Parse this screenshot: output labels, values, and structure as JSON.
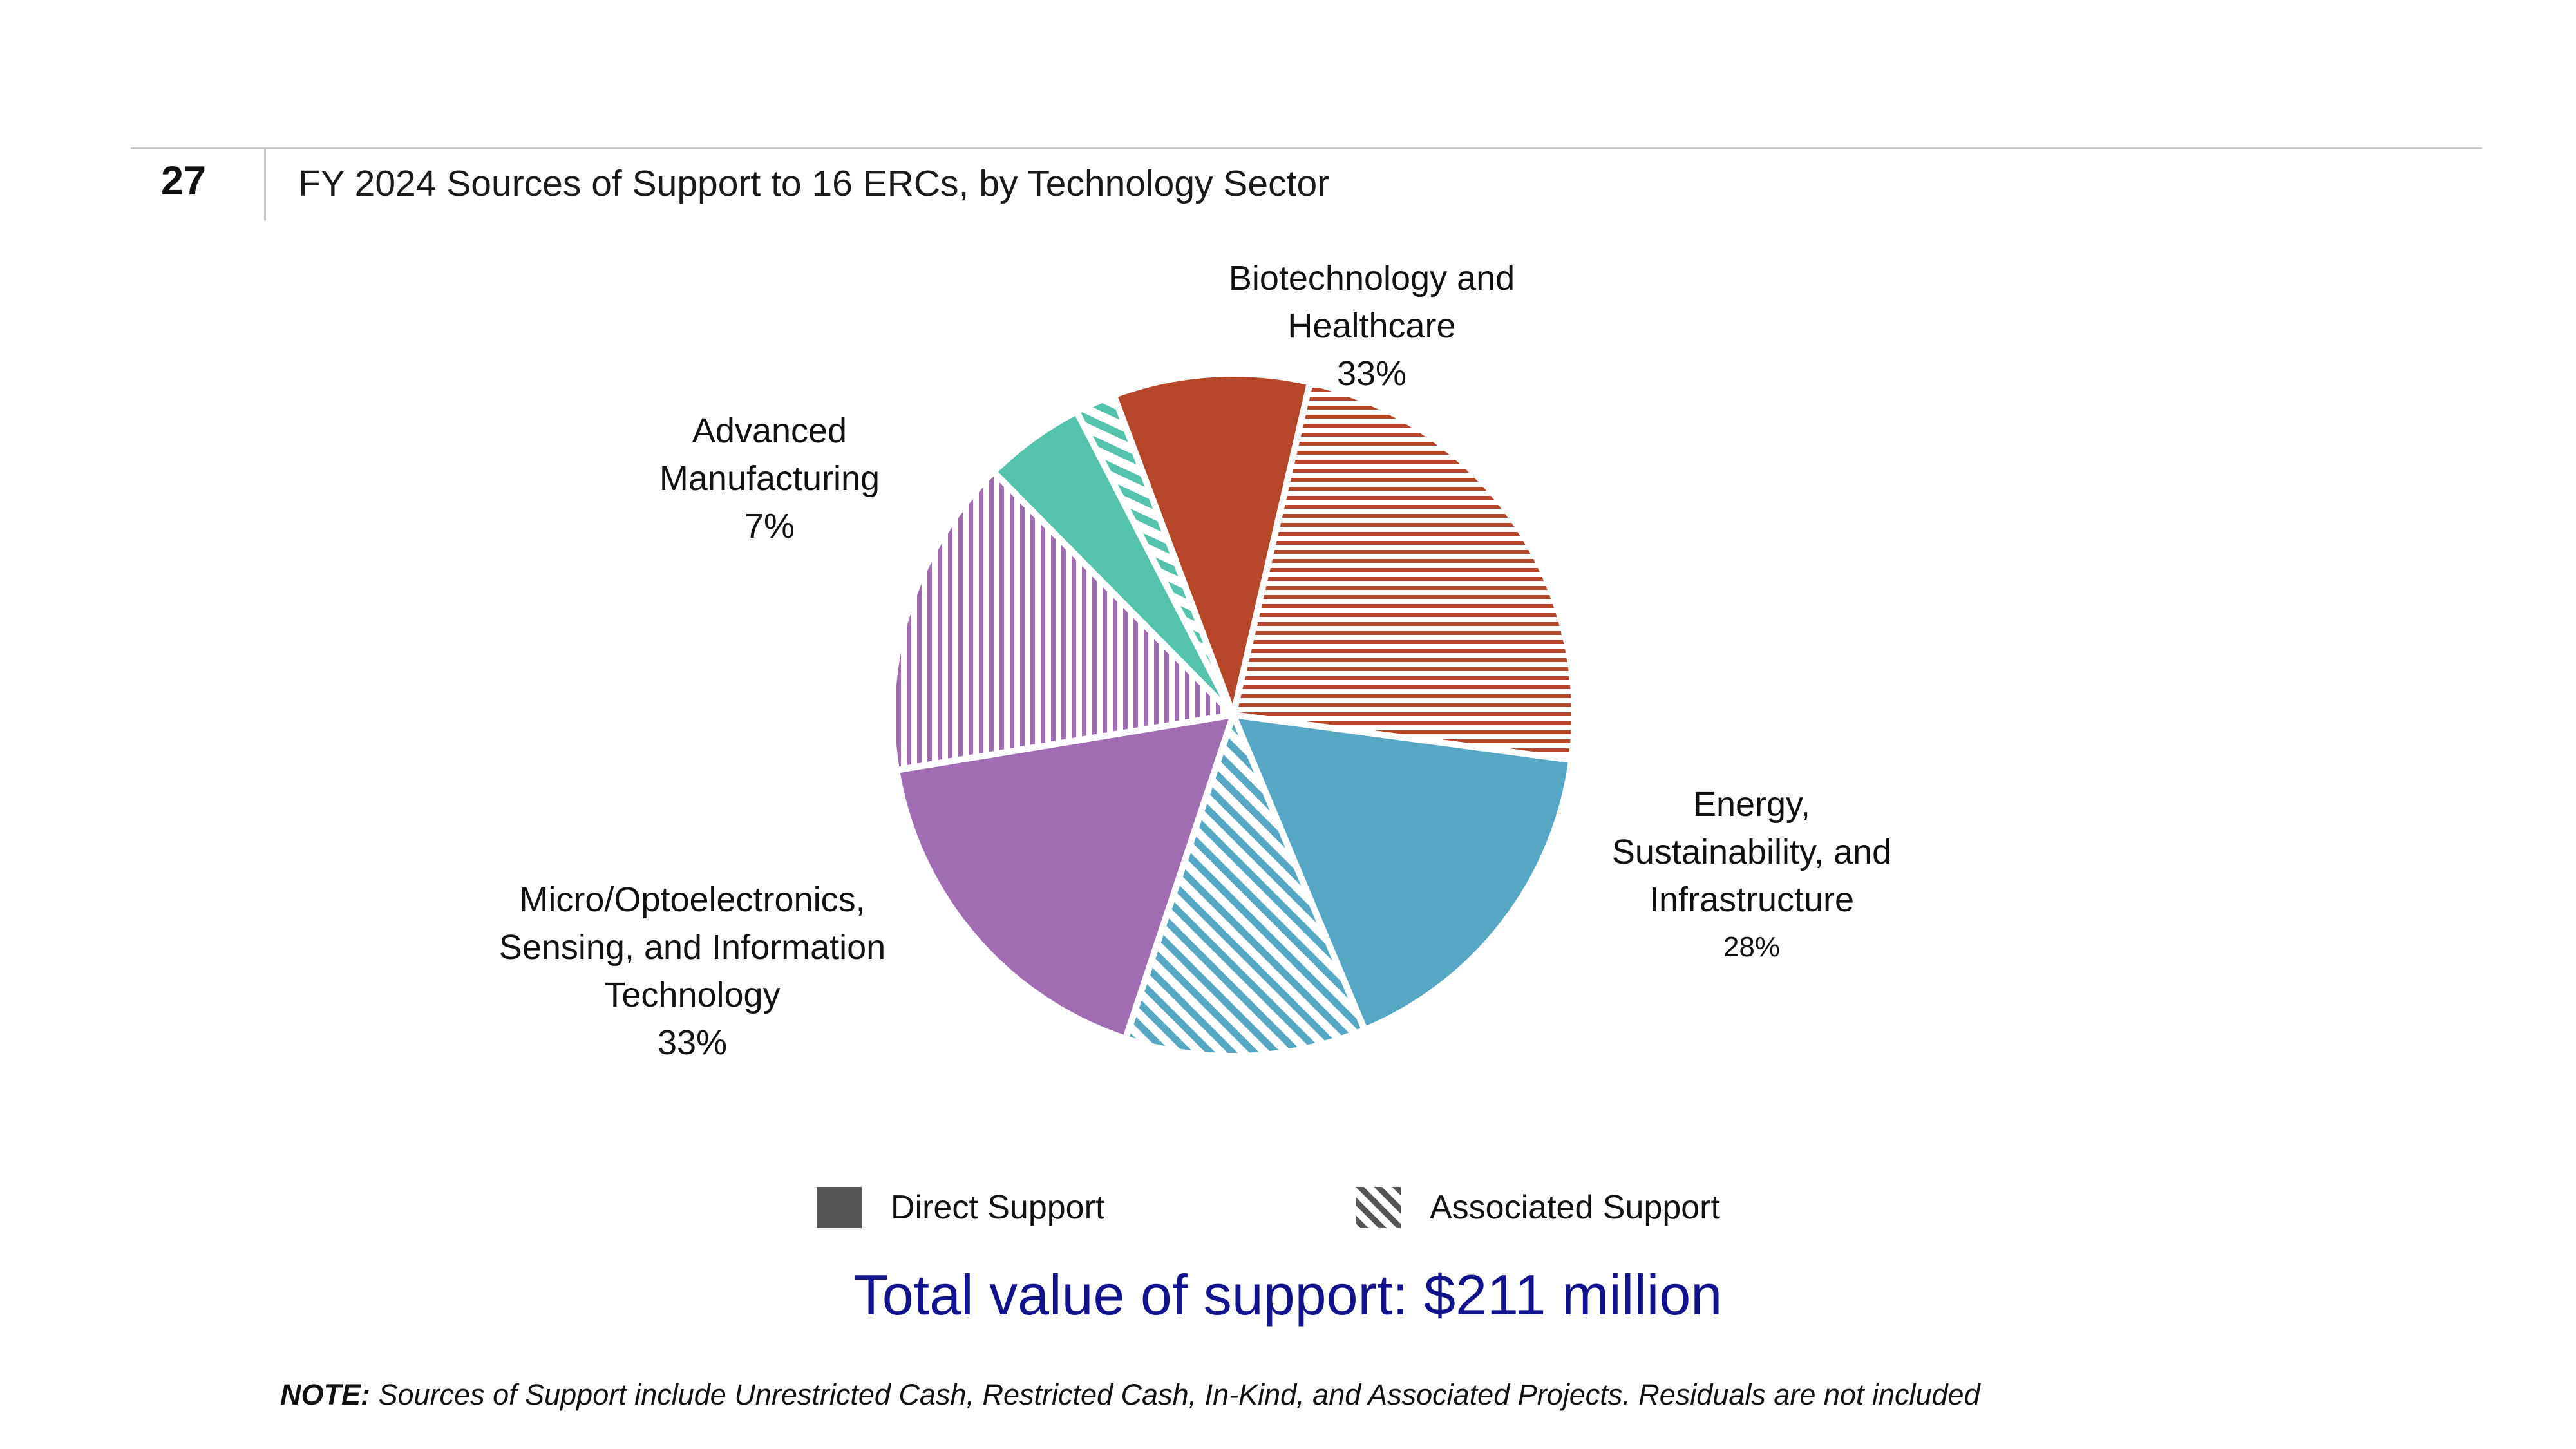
{
  "slide": {
    "number": "27",
    "title": "FY 2024 Sources of Support to 16 ERCs, by Technology Sector"
  },
  "chart_data": {
    "type": "pie",
    "title": "FY 2024 Sources of Support to 16 ERCs, by Technology Sector",
    "start_angle_deg": 13,
    "direction": "clockwise",
    "slices": [
      {
        "sector": "Biotechnology and Healthcare",
        "support": "Associated Support",
        "value": 23.5,
        "color": "#b5462a"
      },
      {
        "sector": "Energy, Sustainability, and Infrastructure",
        "support": "Direct Support",
        "value": 16.6,
        "color": "#55a7c3"
      },
      {
        "sector": "Energy, Sustainability, and Infrastructure",
        "support": "Associated Support",
        "value": 11.4,
        "color": "#55a7c3"
      },
      {
        "sector": "Micro/Optoelectronics, Sensing, and Information Technology",
        "support": "Direct Support",
        "value": 17.3,
        "color": "#a06db2"
      },
      {
        "sector": "Micro/Optoelectronics, Sensing, and Information Technology",
        "support": "Associated Support",
        "value": 15.2,
        "color": "#a06db2"
      },
      {
        "sector": "Advanced Manufacturing",
        "support": "Direct Support",
        "value": 4.8,
        "color": "#55c3ab"
      },
      {
        "sector": "Advanced Manufacturing",
        "support": "Associated Support",
        "value": 1.9,
        "color": "#55c3ab"
      },
      {
        "sector": "Biotechnology and Healthcare",
        "support": "Direct Support",
        "value": 9.3,
        "color": "#b5462a"
      }
    ],
    "sector_labels": [
      {
        "lines": [
          "Biotechnology and",
          "Healthcare"
        ],
        "percent": "33%"
      },
      {
        "lines": [
          "Advanced",
          "Manufacturing"
        ],
        "percent": "7%"
      },
      {
        "lines": [
          "Energy,",
          "Sustainability, and",
          "Infrastructure"
        ],
        "percent": "28%"
      },
      {
        "lines": [
          "Micro/Optoelectronics,",
          "Sensing, and Information",
          "Technology"
        ],
        "percent": "33%"
      }
    ],
    "legend": [
      {
        "label": "Direct Support",
        "pattern": "solid",
        "color": "#555555"
      },
      {
        "label": "Associated Support",
        "pattern": "hatched",
        "color": "#555555"
      }
    ]
  },
  "total": "Total value of support: $211 million",
  "note": {
    "prefix": "NOTE:",
    "text": " Sources of Support include Unrestricted Cash, Restricted Cash, In-Kind, and Associated Projects. Residuals are not included"
  }
}
